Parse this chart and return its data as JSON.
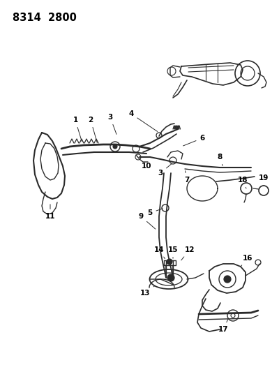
{
  "title": "8314  2800",
  "bg_color": "#ffffff",
  "line_color": "#2a2a2a",
  "text_color": "#000000",
  "title_fontsize": 10.5,
  "label_fontsize": 7.5,
  "figsize": [
    4.0,
    5.33
  ],
  "dpi": 100
}
